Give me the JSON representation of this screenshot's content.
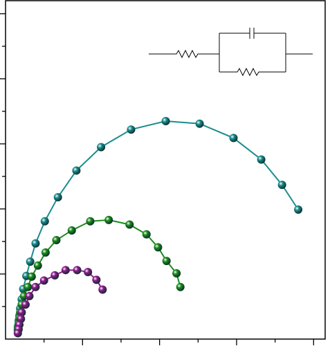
{
  "chart_data": {
    "type": "scatter-line",
    "xlim": [
      0,
      4.15
    ],
    "ylim": [
      0,
      5.2
    ],
    "xticks": [
      0.5,
      1,
      1.5,
      2,
      2.5,
      3,
      3.5,
      4
    ],
    "yticks": [
      0.5,
      1,
      1.5,
      2,
      2.5,
      3,
      3.5,
      4,
      4.5,
      5
    ],
    "series": [
      {
        "color": "#1a8c8c",
        "x": [
          3.8,
          3.59,
          3.32,
          2.96,
          2.52,
          2.08,
          1.63,
          1.24,
          0.92,
          0.68,
          0.51,
          0.39,
          0.32,
          0.27,
          0.23,
          0.21,
          0.19,
          0.18,
          0.17,
          0.16,
          0.16
        ],
        "values": [
          1.99,
          2.37,
          2.76,
          3.09,
          3.31,
          3.35,
          3.22,
          2.95,
          2.59,
          2.18,
          1.81,
          1.47,
          1.19,
          0.97,
          0.77,
          0.61,
          0.47,
          0.36,
          0.28,
          0.19,
          0.13
        ]
      },
      {
        "color": "#1a8c1a",
        "x": [
          2.27,
          2.22,
          2.09,
          1.98,
          1.83,
          1.61,
          1.34,
          1.1,
          0.86,
          0.66,
          0.52,
          0.42,
          0.34,
          0.29,
          0.24,
          0.21,
          0.19,
          0.18,
          0.17,
          0.16
        ],
        "values": [
          0.8,
          1.01,
          1.2,
          1.41,
          1.61,
          1.76,
          1.83,
          1.81,
          1.67,
          1.52,
          1.33,
          1.13,
          0.96,
          0.8,
          0.66,
          0.53,
          0.41,
          0.32,
          0.23,
          0.15
        ]
      },
      {
        "color": "#8c1a8c",
        "x": [
          1.26,
          1.18,
          1.07,
          0.93,
          0.78,
          0.64,
          0.5,
          0.39,
          0.31,
          0.26,
          0.21,
          0.2,
          0.18,
          0.17,
          0.16
        ],
        "values": [
          0.76,
          0.91,
          1.03,
          1.06,
          1.06,
          0.98,
          0.9,
          0.8,
          0.66,
          0.53,
          0.41,
          0.31,
          0.22,
          0.15,
          0.09
        ]
      }
    ]
  }
}
